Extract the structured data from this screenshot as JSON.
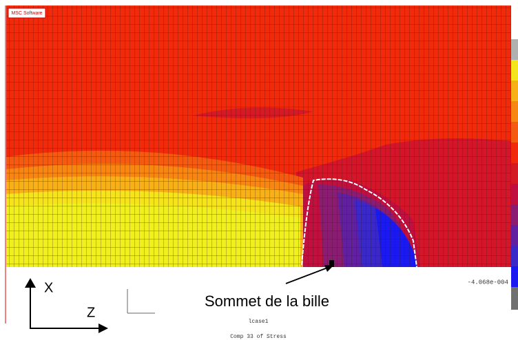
{
  "logo": "MSC Software",
  "annotation": "Sommet de la bille",
  "axes": {
    "vertical": "X",
    "horizontal": "Z"
  },
  "legend": {
    "min_label": "-4.068e-004"
  },
  "footer": {
    "case": "lcase1",
    "component": "Comp 33 of Stress"
  }
}
